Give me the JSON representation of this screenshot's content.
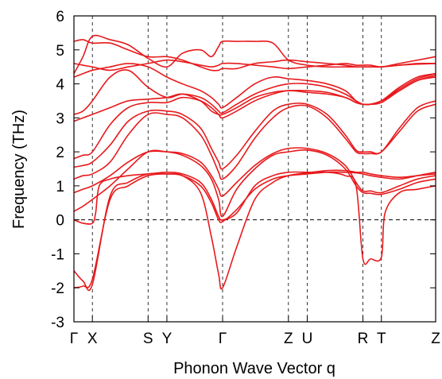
{
  "chart_data": {
    "type": "line",
    "title": "",
    "xlabel": "Phonon Wave Vector q",
    "ylabel": "Frequency (THz)",
    "ylim": [
      -3,
      6
    ],
    "yticks": [
      -3,
      -2,
      -1,
      0,
      1,
      2,
      3,
      4,
      5,
      6
    ],
    "xlim": [
      0,
      1
    ],
    "high_symmetry_points": [
      {
        "label": "Γ",
        "x": 0.0
      },
      {
        "label": "X",
        "x": 0.051
      },
      {
        "label": "S",
        "x": 0.205
      },
      {
        "label": "Y",
        "x": 0.257
      },
      {
        "label": "Γ",
        "x": 0.411
      },
      {
        "label": "Z",
        "x": 0.593
      },
      {
        "label": "U",
        "x": 0.645
      },
      {
        "label": "R",
        "x": 0.799
      },
      {
        "label": "T",
        "x": 0.85
      },
      {
        "label": "Z",
        "x": 1.0
      }
    ],
    "grid": "vertical dashed lines at high-symmetry points",
    "zero_line": true,
    "line_color": "#e8191c",
    "series": [
      {
        "x": [
          0,
          0.025,
          0.051,
          0.1,
          0.15,
          0.205,
          0.257,
          0.3,
          0.35,
          0.38,
          0.4,
          0.411,
          0.45,
          0.5,
          0.55,
          0.593,
          0.645,
          0.7,
          0.75,
          0.78,
          0.799,
          0.82,
          0.85,
          0.9,
          0.95,
          1.0
        ],
        "values": [
          -2.0,
          -1.95,
          -1.75,
          0.6,
          1.0,
          1.3,
          1.35,
          1.3,
          1.0,
          0.5,
          0.0,
          -0.05,
          0.3,
          0.9,
          1.2,
          1.3,
          1.35,
          1.4,
          1.4,
          1.38,
          1.35,
          1.3,
          1.25,
          1.2,
          1.3,
          1.4
        ]
      },
      {
        "x": [
          0,
          0.025,
          0.051,
          0.1,
          0.15,
          0.205,
          0.257,
          0.3,
          0.35,
          0.38,
          0.4,
          0.411,
          0.45,
          0.5,
          0.55,
          0.593,
          0.645,
          0.7,
          0.75,
          0.78,
          0.799,
          0.82,
          0.85,
          0.9,
          0.95,
          1.0
        ],
        "values": [
          -1.5,
          -1.8,
          -1.9,
          0.7,
          1.1,
          1.35,
          1.35,
          1.3,
          0.8,
          -0.5,
          -1.6,
          -2.0,
          -0.8,
          0.6,
          1.1,
          1.3,
          1.38,
          1.45,
          1.45,
          1.4,
          1.4,
          1.35,
          1.3,
          1.25,
          1.3,
          1.35
        ]
      },
      {
        "x": [
          0,
          0.025,
          0.051,
          0.06,
          0.07,
          0.1,
          0.15,
          0.205,
          0.257,
          0.3,
          0.35,
          0.38,
          0.4,
          0.411,
          0.45,
          0.5,
          0.55,
          0.593,
          0.645,
          0.7,
          0.75,
          0.78,
          0.799,
          0.82,
          0.85,
          0.86,
          0.9,
          0.95,
          1.0
        ],
        "values": [
          0.0,
          -0.1,
          -0.1,
          0.2,
          1.0,
          1.2,
          1.3,
          1.35,
          1.4,
          1.35,
          1.1,
          0.6,
          0.1,
          0.0,
          0.2,
          1.0,
          1.3,
          1.4,
          1.4,
          1.4,
          1.3,
          1.0,
          -1.15,
          -1.15,
          -1.1,
          0.2,
          0.8,
          0.9,
          1.0
        ]
      },
      {
        "x": [
          0,
          0.025,
          0.051,
          0.1,
          0.15,
          0.205,
          0.257,
          0.3,
          0.35,
          0.38,
          0.4,
          0.411,
          0.45,
          0.5,
          0.55,
          0.593,
          0.645,
          0.7,
          0.75,
          0.78,
          0.799,
          0.82,
          0.85,
          0.9,
          0.95,
          1.0
        ],
        "values": [
          0.25,
          0.4,
          0.6,
          1.0,
          1.5,
          2.0,
          2.0,
          1.9,
          1.6,
          1.2,
          0.6,
          0.1,
          0.9,
          1.5,
          1.9,
          2.0,
          2.05,
          1.9,
          1.5,
          1.0,
          0.8,
          0.78,
          0.75,
          0.9,
          1.1,
          1.2
        ]
      },
      {
        "x": [
          0,
          0.025,
          0.051,
          0.1,
          0.15,
          0.205,
          0.257,
          0.3,
          0.35,
          0.38,
          0.4,
          0.411,
          0.45,
          0.5,
          0.55,
          0.593,
          0.645,
          0.7,
          0.75,
          0.78,
          0.799,
          0.82,
          0.85,
          0.9,
          0.95,
          1.0
        ],
        "values": [
          0.8,
          0.9,
          1.0,
          1.3,
          1.7,
          2.0,
          2.0,
          1.95,
          1.7,
          1.3,
          0.9,
          0.7,
          1.1,
          1.6,
          1.95,
          2.1,
          2.1,
          1.95,
          1.6,
          1.1,
          0.85,
          0.85,
          0.8,
          1.0,
          1.2,
          1.3
        ]
      },
      {
        "x": [
          0,
          0.025,
          0.051,
          0.1,
          0.15,
          0.205,
          0.257,
          0.3,
          0.35,
          0.38,
          0.4,
          0.411,
          0.45,
          0.5,
          0.55,
          0.593,
          0.645,
          0.7,
          0.75,
          0.78,
          0.799,
          0.82,
          0.85,
          0.9,
          0.95,
          1.0
        ],
        "values": [
          1.2,
          1.3,
          1.35,
          1.7,
          2.5,
          3.1,
          3.1,
          3.0,
          2.5,
          1.9,
          1.4,
          1.2,
          1.6,
          2.4,
          3.0,
          3.3,
          3.35,
          3.0,
          2.4,
          2.0,
          1.95,
          1.95,
          2.0,
          2.6,
          3.2,
          3.4
        ]
      },
      {
        "x": [
          0,
          0.025,
          0.051,
          0.1,
          0.15,
          0.205,
          0.257,
          0.3,
          0.35,
          0.38,
          0.4,
          0.411,
          0.45,
          0.5,
          0.55,
          0.593,
          0.645,
          0.7,
          0.75,
          0.78,
          0.799,
          0.82,
          0.85,
          0.9,
          0.95,
          1.0
        ],
        "values": [
          1.55,
          1.6,
          1.7,
          2.2,
          2.9,
          3.2,
          3.2,
          3.1,
          2.7,
          2.1,
          1.7,
          1.5,
          1.9,
          2.6,
          3.2,
          3.4,
          3.4,
          3.1,
          2.5,
          2.05,
          2.0,
          2.0,
          2.0,
          2.7,
          3.3,
          3.5
        ]
      },
      {
        "x": [
          0,
          0.025,
          0.051,
          0.1,
          0.15,
          0.205,
          0.257,
          0.3,
          0.35,
          0.38,
          0.4,
          0.411,
          0.45,
          0.5,
          0.55,
          0.593,
          0.645,
          0.7,
          0.75,
          0.78,
          0.799,
          0.82,
          0.85,
          0.9,
          0.95,
          1.0
        ],
        "values": [
          1.8,
          1.9,
          2.0,
          2.8,
          3.3,
          3.45,
          3.45,
          3.6,
          3.5,
          3.3,
          3.1,
          3.0,
          3.2,
          3.5,
          3.7,
          3.8,
          3.75,
          3.7,
          3.6,
          3.45,
          3.4,
          3.4,
          3.5,
          3.8,
          4.1,
          4.2
        ]
      },
      {
        "x": [
          0,
          0.025,
          0.051,
          0.1,
          0.15,
          0.205,
          0.257,
          0.3,
          0.35,
          0.38,
          0.4,
          0.411,
          0.45,
          0.5,
          0.55,
          0.593,
          0.645,
          0.7,
          0.75,
          0.78,
          0.799,
          0.82,
          0.85,
          0.9,
          0.95,
          1.0
        ],
        "values": [
          2.9,
          3.0,
          3.1,
          3.3,
          3.5,
          3.55,
          3.6,
          3.7,
          3.5,
          3.2,
          3.1,
          3.1,
          3.3,
          3.6,
          3.75,
          3.8,
          3.8,
          3.75,
          3.6,
          3.45,
          3.4,
          3.4,
          3.5,
          3.85,
          4.15,
          4.3
        ]
      },
      {
        "x": [
          0,
          0.025,
          0.051,
          0.1,
          0.15,
          0.205,
          0.257,
          0.3,
          0.35,
          0.38,
          0.4,
          0.411,
          0.45,
          0.5,
          0.55,
          0.593,
          0.645,
          0.7,
          0.75,
          0.78,
          0.799,
          0.82,
          0.85,
          0.9,
          0.95,
          1.0
        ],
        "values": [
          3.1,
          3.2,
          3.5,
          4.2,
          4.4,
          3.9,
          3.6,
          3.7,
          3.6,
          3.4,
          3.2,
          3.15,
          3.4,
          3.7,
          3.9,
          4.0,
          4.0,
          3.9,
          3.7,
          3.5,
          3.4,
          3.4,
          3.5,
          3.9,
          4.2,
          4.3
        ]
      },
      {
        "x": [
          0,
          0.025,
          0.051,
          0.1,
          0.15,
          0.205,
          0.257,
          0.3,
          0.35,
          0.38,
          0.4,
          0.411,
          0.45,
          0.5,
          0.55,
          0.593,
          0.645,
          0.7,
          0.75,
          0.78,
          0.799,
          0.82,
          0.85,
          0.9,
          0.95,
          1.0
        ],
        "values": [
          4.2,
          4.3,
          4.4,
          4.5,
          4.6,
          4.5,
          4.2,
          4.0,
          3.8,
          3.6,
          3.4,
          3.3,
          3.6,
          4.0,
          4.2,
          4.15,
          4.1,
          4.0,
          3.8,
          3.5,
          3.4,
          3.4,
          3.45,
          3.8,
          4.1,
          4.25
        ]
      },
      {
        "x": [
          0,
          0.025,
          0.051,
          0.1,
          0.15,
          0.205,
          0.257,
          0.3,
          0.35,
          0.38,
          0.4,
          0.411,
          0.45,
          0.5,
          0.55,
          0.593,
          0.645,
          0.7,
          0.75,
          0.78,
          0.799,
          0.82,
          0.85,
          0.9,
          0.95,
          1.0
        ],
        "values": [
          4.6,
          4.55,
          4.5,
          4.4,
          4.5,
          4.6,
          4.7,
          4.65,
          4.55,
          4.5,
          4.55,
          4.6,
          4.6,
          4.55,
          4.5,
          4.45,
          4.5,
          4.55,
          4.6,
          4.55,
          4.55,
          4.55,
          4.5,
          4.6,
          4.7,
          4.8
        ]
      },
      {
        "x": [
          0,
          0.025,
          0.051,
          0.1,
          0.15,
          0.205,
          0.257,
          0.3,
          0.35,
          0.38,
          0.4,
          0.411,
          0.45,
          0.5,
          0.55,
          0.593,
          0.645,
          0.7,
          0.75,
          0.78,
          0.799,
          0.82,
          0.85,
          0.9,
          0.95,
          1.0
        ],
        "values": [
          5.25,
          5.3,
          5.2,
          5.2,
          5.0,
          4.8,
          4.8,
          4.7,
          4.5,
          4.4,
          4.4,
          4.45,
          4.45,
          4.6,
          4.65,
          4.7,
          4.65,
          4.6,
          4.55,
          4.5,
          4.5,
          4.5,
          4.5,
          4.55,
          4.6,
          4.6
        ]
      },
      {
        "x": [
          0,
          0.025,
          0.051,
          0.1,
          0.15,
          0.205,
          0.257,
          0.3,
          0.35,
          0.38,
          0.4,
          0.411,
          0.45,
          0.5,
          0.55,
          0.593,
          0.645,
          0.7,
          0.75,
          0.78,
          0.799,
          0.82,
          0.85,
          0.9,
          0.95,
          1.0
        ],
        "values": [
          4.3,
          4.8,
          5.4,
          5.3,
          5.15,
          4.75,
          4.5,
          4.9,
          5.0,
          4.8,
          5.1,
          5.25,
          5.25,
          5.25,
          5.2,
          4.7,
          4.55,
          4.5,
          4.5,
          4.5,
          4.5,
          4.5,
          4.5,
          4.55,
          4.58,
          4.6
        ]
      }
    ]
  }
}
